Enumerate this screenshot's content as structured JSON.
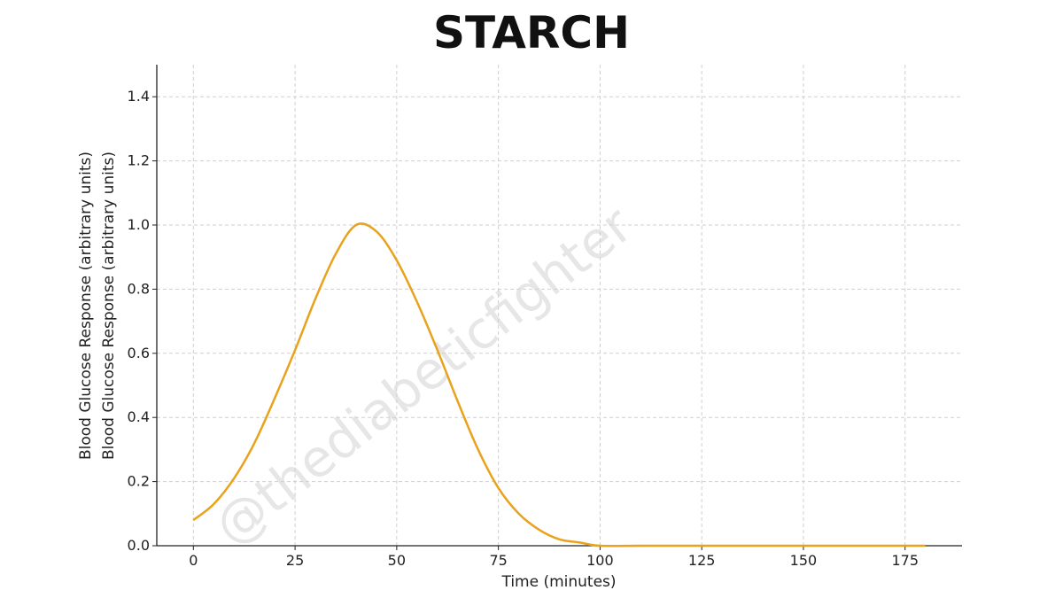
{
  "chart_data": {
    "type": "line",
    "title": "STARCH",
    "xlabel": "Time (minutes)",
    "ylabel": "Blood Glucose Response (arbitrary units)",
    "ylabel_repeat": "Blood Glucose Response (arbitrary units)",
    "watermark": "@thediabeticfighter",
    "xlim": [
      -9,
      189
    ],
    "ylim": [
      0,
      1.5
    ],
    "x_ticks": [
      0,
      25,
      50,
      75,
      100,
      125,
      150,
      175
    ],
    "x_tick_labels": [
      "0",
      "25",
      "50",
      "75",
      "100",
      "125",
      "150",
      "175"
    ],
    "y_ticks": [
      0.0,
      0.2,
      0.4,
      0.6,
      0.8,
      1.0,
      1.2,
      1.4
    ],
    "y_tick_labels": [
      "0.0",
      "0.2",
      "0.4",
      "0.6",
      "0.8",
      "1.0",
      "1.2",
      "1.4"
    ],
    "grid": true,
    "line_color": "#E8A21B",
    "series": [
      {
        "x": [
          0,
          5,
          10,
          15,
          20,
          25,
          30,
          35,
          40,
          45,
          50,
          55,
          60,
          65,
          70,
          75,
          80,
          85,
          90,
          95,
          100,
          110,
          120,
          130,
          140,
          150,
          160,
          170,
          180
        ],
        "y": [
          0.08,
          0.13,
          0.21,
          0.32,
          0.46,
          0.61,
          0.77,
          0.91,
          1.0,
          0.98,
          0.89,
          0.76,
          0.61,
          0.45,
          0.3,
          0.18,
          0.1,
          0.05,
          0.02,
          0.01,
          0.0,
          0.0,
          0.0,
          0.0,
          0.0,
          0.0,
          0.0,
          0.0,
          0.0
        ]
      }
    ]
  }
}
